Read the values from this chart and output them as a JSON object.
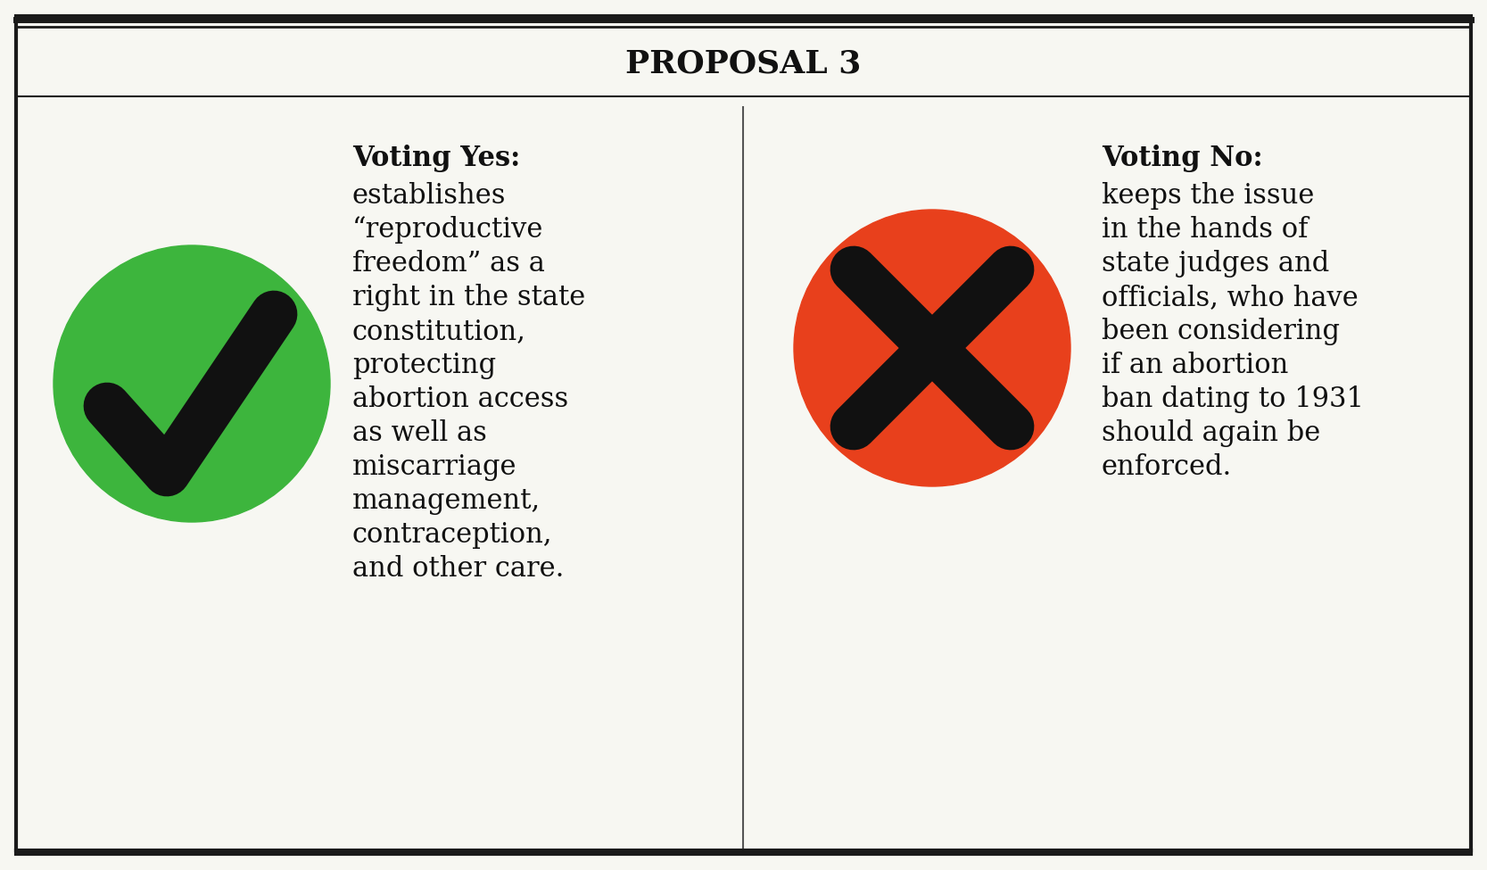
{
  "title": "PROPOSAL 3",
  "title_fontsize": 26,
  "bg_color": "#f7f7f2",
  "border_color": "#1a1a1a",
  "divider_color": "#555555",
  "yes_circle_color": "#3db53d",
  "no_circle_color": "#e8401c",
  "check_color": "#111111",
  "x_color": "#111111",
  "yes_heading": "Voting Yes:",
  "no_heading": "Voting No:",
  "yes_body_lines": [
    "establishes",
    "“reproductive",
    "freedom” as a",
    "right in the state",
    "constitution,",
    "protecting",
    "abortion access",
    "as well as",
    "miscarriage",
    "management,",
    "contraception,",
    "and other care."
  ],
  "no_body_lines": [
    "keeps the issue",
    "in the hands of",
    "state judges and",
    "officials, who have",
    "been considering",
    "if an abortion",
    "ban dating to 1931",
    "should again be",
    "enforced."
  ],
  "text_color": "#111111",
  "heading_fontsize": 22,
  "body_fontsize": 22,
  "font_family": "serif"
}
